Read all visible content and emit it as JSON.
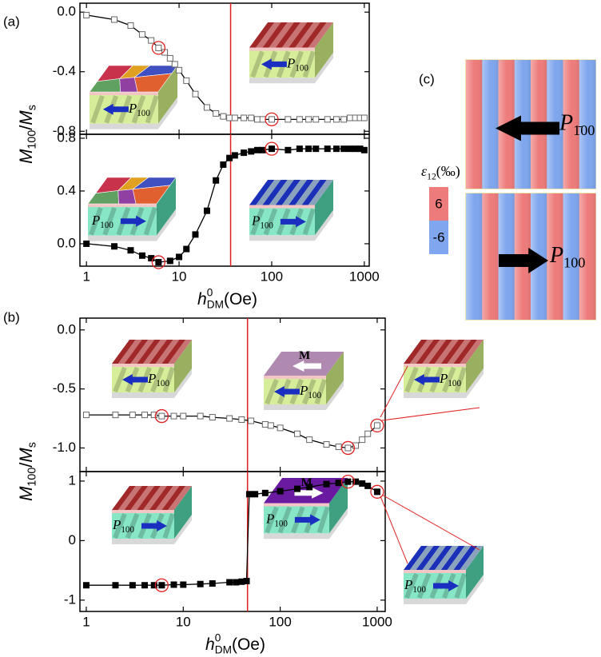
{
  "chart_data": [
    {
      "type": "line",
      "panel": "(a)",
      "xscale": "log",
      "color": "#000",
      "marker": "open-square",
      "marker_color": "#666",
      "circle_color": "#e02020",
      "ylabel": [
        {
          "text": "M",
          "style": "italic"
        },
        {
          "text": "100",
          "style": "sub"
        },
        {
          "text": "/",
          "style": "normal"
        },
        {
          "text": "M",
          "style": "italic"
        },
        {
          "text": "s",
          "style": "sub"
        }
      ],
      "x": [
        1,
        2,
        3,
        4,
        5,
        6,
        7,
        8,
        9,
        10,
        12,
        15,
        20,
        25,
        30,
        35,
        40,
        50,
        60,
        70,
        80,
        100,
        150,
        200,
        250,
        300,
        400,
        500,
        600,
        700,
        800,
        900,
        1000
      ],
      "values": [
        -0.02,
        -0.05,
        -0.09,
        -0.15,
        -0.19,
        -0.24,
        -0.27,
        -0.31,
        -0.35,
        -0.39,
        -0.46,
        -0.55,
        -0.64,
        -0.68,
        -0.7,
        -0.71,
        -0.71,
        -0.71,
        -0.71,
        -0.72,
        -0.72,
        -0.72,
        -0.72,
        -0.72,
        -0.72,
        -0.72,
        -0.72,
        -0.72,
        -0.72,
        -0.71,
        -0.71,
        -0.71,
        -0.71
      ],
      "xlim": [
        0.85,
        1130
      ],
      "xticks": [
        1,
        10,
        100,
        1000
      ],
      "ylim": [
        -0.82,
        0.06
      ],
      "yticks": [
        {
          "value": 0,
          "label": "0.0"
        },
        -0.4,
        -0.8
      ],
      "vline": 36,
      "vline_color": "#e02020",
      "circled": [
        6,
        100
      ],
      "insets": [
        {
          "kind": "multidomain",
          "direction": "left",
          "label": [
            {
              "text": "P",
              "style": "italic"
            },
            {
              "text": "100",
              "style": "sub"
            }
          ]
        },
        {
          "kind": "stripe-red",
          "direction": "left",
          "label": [
            {
              "text": "P",
              "style": "italic"
            },
            {
              "text": "100",
              "style": "sub"
            }
          ]
        }
      ]
    },
    {
      "type": "line",
      "xscale": "log",
      "color": "#000",
      "marker": "filled-square",
      "marker_color": "#000",
      "circle_color": "#e02020",
      "xlabel": [
        {
          "text": "h",
          "style": "italic"
        },
        {
          "text": "0",
          "style": "sup"
        },
        {
          "text": "DM",
          "style": "sub"
        },
        {
          "text": "(Oe)",
          "style": "normal"
        }
      ],
      "x": [
        1,
        2,
        3,
        4,
        5,
        6,
        8,
        10,
        12,
        15,
        20,
        25,
        30,
        35,
        40,
        50,
        60,
        70,
        80,
        100,
        150,
        200,
        250,
        300,
        400,
        500,
        600,
        700,
        800,
        900,
        1000
      ],
      "values": [
        0.0,
        -0.02,
        -0.05,
        -0.09,
        -0.11,
        -0.14,
        -0.13,
        -0.1,
        -0.04,
        0.07,
        0.25,
        0.48,
        0.6,
        0.65,
        0.67,
        0.69,
        0.7,
        0.71,
        0.71,
        0.72,
        0.71,
        0.72,
        0.72,
        0.72,
        0.72,
        0.72,
        0.72,
        0.72,
        0.72,
        0.72,
        0.71
      ],
      "xlim": [
        0.85,
        1130
      ],
      "xticks": [
        1,
        10,
        100,
        1000
      ],
      "ylim": [
        -0.17,
        0.83
      ],
      "yticks": [
        {
          "value": 0,
          "label": "0.0"
        },
        0.4,
        0.8
      ],
      "vline": 36,
      "vline_color": "#e02020",
      "circled": [
        6,
        100
      ],
      "insets": [
        {
          "kind": "multidomain",
          "direction": "right",
          "label": [
            {
              "text": "P",
              "style": "italic"
            },
            {
              "text": "100",
              "style": "sub"
            }
          ]
        },
        {
          "kind": "stripe-blue",
          "direction": "right",
          "label": [
            {
              "text": "P",
              "style": "italic"
            },
            {
              "text": "100",
              "style": "sub"
            }
          ]
        }
      ]
    },
    {
      "type": "line",
      "panel": "(b)",
      "xscale": "log",
      "color": "#000",
      "marker": "open-square",
      "marker_color": "#666",
      "circle_color": "#e02020",
      "ylabel": [
        {
          "text": "M",
          "style": "italic"
        },
        {
          "text": "100",
          "style": "sub"
        },
        {
          "text": "/",
          "style": "normal"
        },
        {
          "text": "M",
          "style": "italic"
        },
        {
          "text": "s",
          "style": "sub"
        }
      ],
      "x": [
        1,
        2,
        3,
        4,
        5,
        6,
        8,
        10,
        15,
        20,
        30,
        40,
        50,
        70,
        80,
        100,
        150,
        200,
        300,
        400,
        500,
        600,
        700,
        800,
        1000
      ],
      "values": [
        -0.72,
        -0.72,
        -0.72,
        -0.72,
        -0.72,
        -0.73,
        -0.73,
        -0.73,
        -0.73,
        -0.74,
        -0.75,
        -0.76,
        -0.77,
        -0.8,
        -0.81,
        -0.83,
        -0.88,
        -0.93,
        -0.97,
        -0.99,
        -1.0,
        -0.98,
        -0.93,
        -0.88,
        -0.81
      ],
      "xlim": [
        0.86,
        1210
      ],
      "xticks": [
        1,
        10,
        100,
        1000
      ],
      "ylim": [
        -1.2,
        0.1
      ],
      "yticks": [
        {
          "value": 0,
          "label": "0.0"
        },
        -0.5,
        {
          "value": -1,
          "label": "-1.0"
        }
      ],
      "vline": 46,
      "vline_color": "#e02020",
      "circled": [
        6,
        500,
        1000
      ],
      "insets": [
        {
          "kind": "stripe-red",
          "direction": "left",
          "label": [
            {
              "text": "P",
              "style": "italic"
            },
            {
              "text": "100",
              "style": "sub"
            }
          ]
        },
        {
          "kind": "film-light",
          "direction": "left",
          "label": [
            {
              "text": "P",
              "style": "italic"
            },
            {
              "text": "100",
              "style": "sub"
            }
          ],
          "top_label": [
            {
              "text": "M",
              "style": "bold"
            }
          ]
        },
        {
          "kind": "stripe-red",
          "direction": "left",
          "label": [
            {
              "text": "P",
              "style": "italic"
            },
            {
              "text": "100",
              "style": "sub"
            }
          ]
        }
      ]
    },
    {
      "type": "line",
      "xscale": "log",
      "color": "#000",
      "marker": "filled-square",
      "marker_color": "#000",
      "circle_color": "#e02020",
      "xlabel": [
        {
          "text": "h",
          "style": "italic"
        },
        {
          "text": "0",
          "style": "sup"
        },
        {
          "text": "DM",
          "style": "sub"
        },
        {
          "text": "(Oe)",
          "style": "normal"
        }
      ],
      "x": [
        1,
        2,
        3,
        4,
        5,
        6,
        8,
        10,
        15,
        20,
        30,
        35,
        40,
        45,
        48,
        55,
        70,
        100,
        150,
        200,
        300,
        400,
        500,
        600,
        700,
        800,
        1000
      ],
      "values": [
        -0.75,
        -0.75,
        -0.75,
        -0.75,
        -0.75,
        -0.75,
        -0.74,
        -0.74,
        -0.73,
        -0.72,
        -0.7,
        -0.7,
        -0.69,
        -0.68,
        0.78,
        0.78,
        0.8,
        0.83,
        0.87,
        0.9,
        0.95,
        0.97,
        0.99,
        0.99,
        0.96,
        0.92,
        0.82
      ],
      "xlim": [
        0.86,
        1210
      ],
      "xticks": [
        1,
        10,
        100,
        1000
      ],
      "ylim": [
        -1.19,
        1.16
      ],
      "yticks": [
        1,
        0,
        -1
      ],
      "vline": 46,
      "vline_color": "#e02020",
      "circled": [
        6,
        500,
        1000
      ],
      "insets": [
        {
          "kind": "stripe-red",
          "direction": "right",
          "label": [
            {
              "text": "P",
              "style": "italic"
            },
            {
              "text": "100",
              "style": "sub"
            }
          ]
        },
        {
          "kind": "film-dark",
          "direction": "right",
          "label": [
            {
              "text": "P",
              "style": "italic"
            },
            {
              "text": "100",
              "style": "sub"
            }
          ],
          "top_label": [
            {
              "text": "M",
              "style": "bold"
            }
          ]
        },
        {
          "kind": "stripe-blue",
          "direction": "right",
          "label": [
            {
              "text": "P",
              "style": "italic"
            },
            {
              "text": "100",
              "style": "sub"
            }
          ]
        }
      ]
    }
  ],
  "panel_c": {
    "label": "(c)",
    "legend_title": [
      {
        "text": "ε",
        "style": "italic"
      },
      {
        "text": "12",
        "style": "sub"
      },
      {
        "text": "(‰)",
        "style": "normal"
      }
    ],
    "legend": [
      {
        "value": 6,
        "color": "#ee7b7b"
      },
      {
        "value": -6,
        "color": "#7fa6ee"
      }
    ],
    "images": [
      {
        "direction": "left",
        "label": [
          {
            "text": "P",
            "style": "italic"
          },
          {
            "text": "1̄00",
            "style": "sub"
          }
        ]
      },
      {
        "direction": "right",
        "label": [
          {
            "text": "P",
            "style": "italic"
          },
          {
            "text": "100",
            "style": "sub"
          }
        ]
      }
    ]
  }
}
